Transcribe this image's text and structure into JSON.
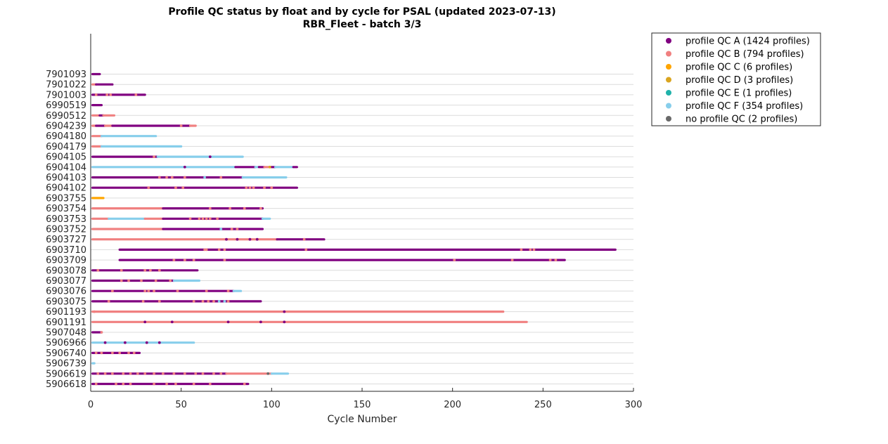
{
  "chart_data": {
    "type": "scatter",
    "title": "Profile QC status by float and by cycle for PSAL (updated 2023-07-13)",
    "subtitle": "RBR_Fleet - batch 3/3",
    "xlabel": "Cycle Number",
    "ylabel": "",
    "xlim": [
      0,
      300
    ],
    "xticks": [
      0,
      50,
      100,
      150,
      200,
      250,
      300
    ],
    "grid": true,
    "legend_position": "outside-top-right",
    "colors": {
      "A": "#800080",
      "B": "#f08080",
      "C": "#ffa500",
      "D": "#daa520",
      "E": "#20b2aa",
      "F": "#87ceeb",
      "N": "#696969"
    },
    "legend": [
      {
        "key": "A",
        "label": "profile QC A (1424 profiles)"
      },
      {
        "key": "B",
        "label": "profile QC B (794 profiles)"
      },
      {
        "key": "C",
        "label": "profile QC C (6 profiles)"
      },
      {
        "key": "D",
        "label": "profile QC D (3 profiles)"
      },
      {
        "key": "E",
        "label": "profile QC E (1 profiles)"
      },
      {
        "key": "F",
        "label": "profile QC F (354 profiles)"
      },
      {
        "key": "N",
        "label": "no profile QC (2 profiles)"
      }
    ],
    "floats": [
      {
        "name": "7901093",
        "segments": [
          [
            1,
            5,
            "A"
          ]
        ],
        "spots": []
      },
      {
        "name": "7901022",
        "segments": [
          [
            1,
            3,
            "B"
          ],
          [
            3,
            12,
            "A"
          ]
        ],
        "spots": []
      },
      {
        "name": "7901003",
        "segments": [
          [
            1,
            30,
            "A"
          ]
        ],
        "spots": [
          [
            3,
            "B"
          ],
          [
            9,
            "B"
          ],
          [
            11,
            "B"
          ],
          [
            25,
            "B"
          ]
        ]
      },
      {
        "name": "6990519",
        "segments": [
          [
            1,
            6,
            "A"
          ]
        ],
        "spots": []
      },
      {
        "name": "6990512",
        "segments": [
          [
            1,
            5,
            "B"
          ],
          [
            5,
            7,
            "A"
          ],
          [
            7,
            13,
            "B"
          ]
        ],
        "spots": []
      },
      {
        "name": "6904239",
        "segments": [
          [
            1,
            3,
            "B"
          ],
          [
            3,
            8,
            "A"
          ],
          [
            8,
            12,
            "B"
          ],
          [
            12,
            55,
            "A"
          ],
          [
            55,
            58,
            "B"
          ]
        ],
        "spots": [
          [
            50,
            "B"
          ]
        ]
      },
      {
        "name": "6904180",
        "segments": [
          [
            1,
            6,
            "B"
          ],
          [
            6,
            36,
            "F"
          ]
        ],
        "spots": []
      },
      {
        "name": "6904179",
        "segments": [
          [
            1,
            6,
            "B"
          ],
          [
            6,
            50,
            "F"
          ]
        ],
        "spots": []
      },
      {
        "name": "6904105",
        "segments": [
          [
            1,
            37,
            "A"
          ],
          [
            37,
            84,
            "F"
          ]
        ],
        "spots": [
          [
            35,
            "B"
          ],
          [
            66,
            "A"
          ]
        ]
      },
      {
        "name": "6904104",
        "segments": [
          [
            1,
            80,
            "F"
          ],
          [
            80,
            91,
            "A"
          ],
          [
            91,
            93,
            "F"
          ],
          [
            93,
            96,
            "A"
          ],
          [
            96,
            100,
            "B"
          ],
          [
            100,
            102,
            "A"
          ],
          [
            102,
            112,
            "F"
          ],
          [
            112,
            114,
            "A"
          ]
        ],
        "spots": [
          [
            52,
            "A"
          ],
          [
            99,
            "D"
          ]
        ]
      },
      {
        "name": "6904103",
        "segments": [
          [
            1,
            84,
            "A"
          ],
          [
            84,
            108,
            "F"
          ]
        ],
        "spots": [
          [
            38,
            "B"
          ],
          [
            42,
            "B"
          ],
          [
            45,
            "B"
          ],
          [
            52,
            "B"
          ],
          [
            63,
            "F"
          ],
          [
            72,
            "B"
          ]
        ]
      },
      {
        "name": "6904102",
        "segments": [
          [
            1,
            114,
            "A"
          ]
        ],
        "spots": [
          [
            32,
            "B"
          ],
          [
            47,
            "B"
          ],
          [
            51,
            "B"
          ],
          [
            86,
            "B"
          ],
          [
            88,
            "B"
          ],
          [
            90,
            "B"
          ],
          [
            96,
            "B"
          ],
          [
            100,
            "B"
          ]
        ]
      },
      {
        "name": "6903755",
        "segments": [
          [
            1,
            7,
            "C"
          ]
        ],
        "spots": []
      },
      {
        "name": "6903754",
        "segments": [
          [
            1,
            40,
            "B"
          ],
          [
            40,
            95,
            "A"
          ]
        ],
        "spots": [
          [
            66,
            "B"
          ],
          [
            77,
            "B"
          ],
          [
            85,
            "B"
          ],
          [
            94,
            "B"
          ]
        ]
      },
      {
        "name": "6903753",
        "segments": [
          [
            1,
            10,
            "B"
          ],
          [
            10,
            30,
            "F"
          ],
          [
            30,
            40,
            "B"
          ],
          [
            40,
            95,
            "A"
          ],
          [
            95,
            99,
            "F"
          ]
        ],
        "spots": [
          [
            55,
            "B"
          ],
          [
            60,
            "B"
          ],
          [
            62,
            "B"
          ],
          [
            64,
            "B"
          ],
          [
            66,
            "B"
          ],
          [
            70,
            "B"
          ]
        ]
      },
      {
        "name": "6903752",
        "segments": [
          [
            1,
            40,
            "B"
          ],
          [
            40,
            95,
            "A"
          ]
        ],
        "spots": [
          [
            72,
            "F"
          ],
          [
            78,
            "B"
          ],
          [
            81,
            "B"
          ]
        ]
      },
      {
        "name": "6903727",
        "segments": [
          [
            1,
            103,
            "B"
          ],
          [
            103,
            129,
            "A"
          ]
        ],
        "spots": [
          [
            75,
            "A"
          ],
          [
            81,
            "A"
          ],
          [
            88,
            "A"
          ],
          [
            92,
            "A"
          ],
          [
            118,
            "B"
          ]
        ]
      },
      {
        "name": "6903710",
        "segments": [
          [
            16,
            290,
            "A"
          ]
        ],
        "spots": [
          [
            63,
            "B"
          ],
          [
            64,
            "B"
          ],
          [
            71,
            "B"
          ],
          [
            74,
            "B"
          ],
          [
            119,
            "B"
          ],
          [
            238,
            "B"
          ],
          [
            243,
            "B"
          ],
          [
            245,
            "B"
          ]
        ]
      },
      {
        "name": "6903709",
        "segments": [
          [
            16,
            262,
            "A"
          ]
        ],
        "spots": [
          [
            46,
            "B"
          ],
          [
            52,
            "B"
          ],
          [
            57,
            "B"
          ],
          [
            74,
            "B"
          ],
          [
            201,
            "B"
          ],
          [
            233,
            "B"
          ],
          [
            254,
            "B"
          ],
          [
            257,
            "B"
          ]
        ]
      },
      {
        "name": "6903078",
        "segments": [
          [
            1,
            59,
            "A"
          ]
        ],
        "spots": [
          [
            4,
            "B"
          ],
          [
            17,
            "B"
          ],
          [
            30,
            "B"
          ],
          [
            33,
            "B"
          ],
          [
            38,
            "B"
          ]
        ]
      },
      {
        "name": "6903077",
        "segments": [
          [
            1,
            46,
            "A"
          ],
          [
            46,
            60,
            "F"
          ]
        ],
        "spots": [
          [
            17,
            "B"
          ],
          [
            21,
            "B"
          ],
          [
            28,
            "B"
          ],
          [
            36,
            "B"
          ],
          [
            44,
            "B"
          ]
        ]
      },
      {
        "name": "6903076",
        "segments": [
          [
            1,
            79,
            "A"
          ],
          [
            79,
            83,
            "F"
          ]
        ],
        "spots": [
          [
            12,
            "B"
          ],
          [
            30,
            "B"
          ],
          [
            32,
            "B"
          ],
          [
            35,
            "B"
          ],
          [
            48,
            "B"
          ],
          [
            64,
            "B"
          ],
          [
            76,
            "B"
          ]
        ]
      },
      {
        "name": "6903075",
        "segments": [
          [
            1,
            94,
            "A"
          ]
        ],
        "spots": [
          [
            10,
            "B"
          ],
          [
            29,
            "B"
          ],
          [
            38,
            "B"
          ],
          [
            57,
            "B"
          ],
          [
            62,
            "B"
          ],
          [
            65,
            "B"
          ],
          [
            68,
            "B"
          ],
          [
            71,
            "F"
          ],
          [
            74,
            "F"
          ],
          [
            76,
            "B"
          ]
        ]
      },
      {
        "name": "6901193",
        "segments": [
          [
            1,
            107,
            "B"
          ],
          [
            107,
            228,
            "B"
          ]
        ],
        "spots": [
          [
            2,
            "B"
          ],
          [
            107,
            "A"
          ]
        ]
      },
      {
        "name": "6901191",
        "segments": [
          [
            1,
            241,
            "B"
          ]
        ],
        "spots": [
          [
            30,
            "A"
          ],
          [
            45,
            "A"
          ],
          [
            76,
            "A"
          ],
          [
            94,
            "A"
          ],
          [
            107,
            "A"
          ]
        ]
      },
      {
        "name": "5907048",
        "segments": [
          [
            1,
            6,
            "A"
          ]
        ],
        "spots": [
          [
            6,
            "B"
          ]
        ]
      },
      {
        "name": "5906966",
        "segments": [
          [
            1,
            57,
            "F"
          ]
        ],
        "spots": [
          [
            8,
            "A"
          ],
          [
            19,
            "A"
          ],
          [
            31,
            "A"
          ],
          [
            38,
            "A"
          ]
        ]
      },
      {
        "name": "5906740",
        "segments": [
          [
            1,
            27,
            "A"
          ]
        ],
        "spots": [
          [
            3,
            "B"
          ],
          [
            6,
            "B"
          ],
          [
            12,
            "B"
          ],
          [
            16,
            "B"
          ],
          [
            21,
            "B"
          ],
          [
            24,
            "B"
          ]
        ]
      },
      {
        "name": "5906739",
        "segments": [
          [
            1,
            2,
            "F"
          ]
        ],
        "spots": []
      },
      {
        "name": "5906619",
        "segments": [
          [
            1,
            75,
            "A"
          ],
          [
            75,
            100,
            "B"
          ],
          [
            100,
            109,
            "F"
          ]
        ],
        "spots": [
          [
            4,
            "B"
          ],
          [
            8,
            "B"
          ],
          [
            12,
            "B"
          ],
          [
            18,
            "B"
          ],
          [
            22,
            "B"
          ],
          [
            26,
            "B"
          ],
          [
            30,
            "B"
          ],
          [
            35,
            "B"
          ],
          [
            40,
            "B"
          ],
          [
            46,
            "B"
          ],
          [
            52,
            "B"
          ],
          [
            58,
            "B"
          ],
          [
            62,
            "B"
          ],
          [
            68,
            "B"
          ],
          [
            72,
            "B"
          ],
          [
            98,
            "N"
          ]
        ]
      },
      {
        "name": "5906618",
        "segments": [
          [
            1,
            87,
            "A"
          ]
        ],
        "spots": [
          [
            3,
            "B"
          ],
          [
            14,
            "B"
          ],
          [
            18,
            "B"
          ],
          [
            22,
            "B"
          ],
          [
            35,
            "B"
          ],
          [
            42,
            "B"
          ],
          [
            47,
            "B"
          ],
          [
            57,
            "B"
          ],
          [
            66,
            "B"
          ],
          [
            85,
            "B"
          ]
        ]
      }
    ]
  }
}
